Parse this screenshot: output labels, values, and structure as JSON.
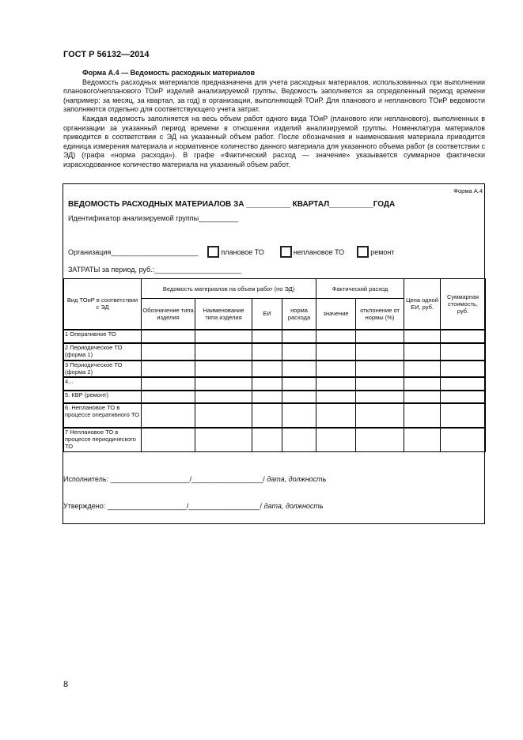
{
  "header": {
    "doc_code": "ГОСТ Р 56132—2014"
  },
  "intro": {
    "heading": "Форма А.4 — Ведомость расходных материалов",
    "paragraphs": [
      "Ведомость расходных материалов предназначена для учета расходных материалов, использованных при выполнении планового/непланового ТОиР изделий анализируемой группы. Ведомость заполняется за определенный период времени (например: за месяц, за квартал, за год) в организации, выполняющей ТОиР. Для планового и непланового ТОиР ведомости заполняются отдельно для соответствующего учета затрат.",
      "Каждая ведомость заполняется на весь объем работ одного вида ТОиР (планового или непланового), выполненных в организации за указанный период времени в отношении изделий анализируемой группы. Номенклатура материалов приводится в соответствии с ЭД на указанный объем работ. После обозначения и наименования материала приводится единица измерения материала и нормативное количество данного материала для указанного объема работ (в соответствии с ЭД) (графа «норма расхода»). В графе «Фактический расход — значение» указывается суммарное фактически израсходованное количество материала на указанный объем работ."
    ]
  },
  "form": {
    "label": "Форма А.4",
    "title": "ВЕДОМОСТЬ РАСХОДНЫХ МАТЕРИАЛОВ ЗА __________ КВАРТАЛ__________ГОДА",
    "identifier": "Идентификатор анализируемой группы__________",
    "organization": "Организация______________________",
    "checkboxes": [
      {
        "label": "плановое ТО",
        "checked": false
      },
      {
        "label": "неплановое ТО",
        "checked": false
      },
      {
        "label": "ремонт",
        "checked": false
      }
    ],
    "costs": "ЗАТРАТЫ за период, руб.:______________________",
    "table": {
      "col_type": "Вид ТОиР в соответствии с ЭД",
      "group_materials": "Ведомость материалов на объем работ (по ЭД)",
      "group_actual": "Фактический расход",
      "col_designation": "Обозначение типа изделия",
      "col_name": "Наименование типа изделия",
      "col_unit": "ЕИ",
      "col_norm": "норма расхода",
      "col_value": "значение",
      "col_deviation": "отклонение от нормы (%)",
      "col_price": "Цена одной ЕИ, руб.",
      "col_total": "Суммарная стоимость, руб.",
      "rows": [
        "1 Оперативное ТО",
        "2 Периодическое ТО (форма 1)",
        "3 Периодическое ТО (форма 2)",
        "4...",
        "5. КВР (ремонт)",
        "6. Неплановое ТО в процессе оперативного ТО",
        "7 Неплановое ТО в процессе периодического ТО"
      ]
    },
    "signatures": {
      "executor": "Исполнитель: ____________________/__________________/",
      "approved": "Утверждено: ____________________/__________________/",
      "hint": "дата, должность"
    }
  },
  "footer": {
    "page_number": "8"
  }
}
